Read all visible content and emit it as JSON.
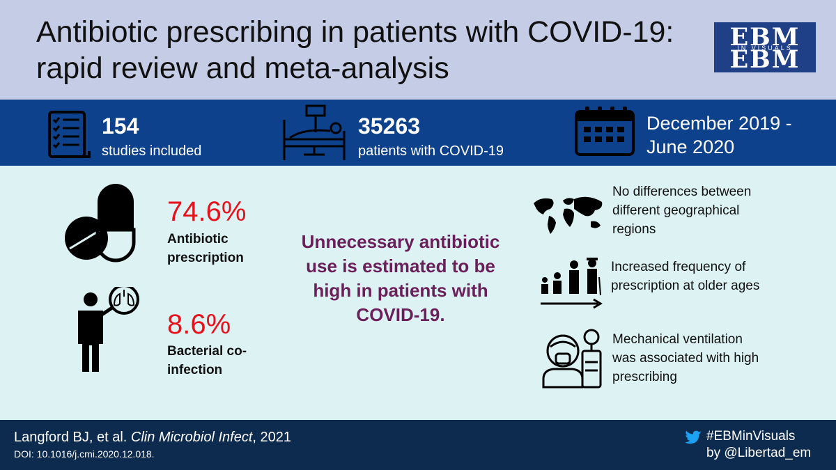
{
  "title": {
    "line1": "Antibiotic prescribing in patients with COVID-19:",
    "line2": "rapid review and meta-analysis"
  },
  "logo": {
    "text": "EBM",
    "sub": "IN VISUALS"
  },
  "stats": [
    {
      "number": "154",
      "label": "studies included",
      "icon": "checklist-icon"
    },
    {
      "number": "35263",
      "label": "patients with COVID-19",
      "icon": "hospital-bed-icon"
    },
    {
      "line1": "December 2019 -",
      "line2": "June 2020",
      "icon": "calendar-icon"
    }
  ],
  "findings": [
    {
      "value": "74.6%",
      "label_line1": "Antibiotic",
      "label_line2": "prescription",
      "icon": "pill-icon"
    },
    {
      "value": "8.6%",
      "label_line1": "Bacterial co-",
      "label_line2": "infection",
      "icon": "patient-lungs-icon"
    }
  ],
  "conclusion": {
    "line1": "Unnecessary antibiotic",
    "line2": "use is estimated to be",
    "line3": "high in patients with",
    "line4": "COVID-19."
  },
  "side_notes": [
    {
      "lines": [
        "No differences between",
        "different geographical",
        "regions"
      ],
      "icon": "world-map-icon"
    },
    {
      "lines": [
        "Increased frequency of",
        "prescription at older ages"
      ],
      "icon": "age-progression-icon"
    },
    {
      "lines": [
        "Mechanical ventilation",
        "was associated with high",
        "prescribing"
      ],
      "icon": "ventilator-icon"
    }
  ],
  "footer": {
    "citation_authors": "Langford BJ, et al. ",
    "citation_journal": "Clin Microbiol Infect",
    "citation_year": ", 2021",
    "doi": "DOI: 10.1016/j.cmi.2020.12.018.",
    "hashtag": "#EBMinVisuals",
    "byline": "by @Libertad_em"
  },
  "colors": {
    "header_bg": "#c5cce6",
    "stats_bg": "#0e418c",
    "body_bg": "#ddf2f2",
    "footer_bg": "#0d2a4f",
    "percent": "#e8101a",
    "conclusion": "#6a1f5a"
  }
}
